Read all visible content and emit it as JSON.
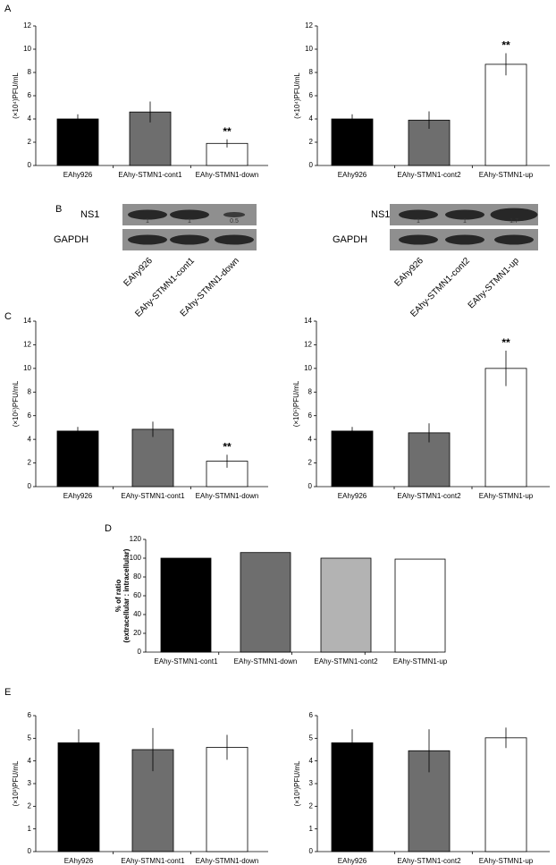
{
  "panels": [
    "A",
    "B",
    "C",
    "D",
    "E"
  ],
  "blots": [
    {
      "rows": [
        "NS1",
        "GAPDH"
      ],
      "lanes": [
        "EAhy926",
        "EAhy-STMN1-cont1",
        "EAhy-STMN1-down"
      ],
      "ns1_ratios": [
        1,
        1,
        0.5
      ]
    },
    {
      "rows": [
        "NS1",
        "GAPDH"
      ],
      "lanes": [
        "EAhy926",
        "EAhy-STMN1-cont2",
        "EAhy-STMN1-up"
      ],
      "ns1_ratios": [
        1,
        1,
        1.7
      ]
    }
  ],
  "chart_data": [
    {
      "type": "bar",
      "ylabel": "(×10⁴)PFU/mL",
      "categories": [
        "EAhy926",
        "EAhy-STMN1-cont1",
        "EAhy-STMN1-down"
      ],
      "values": [
        4.0,
        4.6,
        1.9
      ],
      "errors": [
        0.4,
        0.9,
        0.35
      ],
      "value_annotations": [
        null,
        null,
        "**"
      ],
      "colors": [
        "#000000",
        "#6e6e6e",
        "#ffffff"
      ],
      "ylim": [
        0,
        12
      ],
      "yticks": [
        0,
        2,
        4,
        6,
        8,
        10,
        12
      ]
    },
    {
      "type": "bar",
      "ylabel": "(×10⁴)PFU/mL",
      "categories": [
        "EAhy926",
        "EAhy-STMN1-cont2",
        "EAhy-STMN1-up"
      ],
      "values": [
        4.0,
        3.9,
        8.7
      ],
      "errors": [
        0.4,
        0.75,
        0.95
      ],
      "value_annotations": [
        null,
        null,
        "**"
      ],
      "colors": [
        "#000000",
        "#6e6e6e",
        "#ffffff"
      ],
      "ylim": [
        0,
        12
      ],
      "yticks": [
        0,
        2,
        4,
        6,
        8,
        10,
        12
      ]
    },
    {
      "type": "bar",
      "ylabel": "(×10⁵)PFU/mL",
      "categories": [
        "EAhy926",
        "EAhy-STMN1-cont1",
        "EAhy-STMN1-down"
      ],
      "values": [
        4.7,
        4.85,
        2.15
      ],
      "errors": [
        0.35,
        0.65,
        0.55
      ],
      "value_annotations": [
        null,
        null,
        "**"
      ],
      "colors": [
        "#000000",
        "#6e6e6e",
        "#ffffff"
      ],
      "ylim": [
        0,
        14
      ],
      "yticks": [
        0,
        2,
        4,
        6,
        8,
        10,
        12,
        14
      ]
    },
    {
      "type": "bar",
      "ylabel": "(×10⁵)PFU/mL",
      "categories": [
        "EAhy926",
        "EAhy-STMN1-cont2",
        "EAhy-STMN1-up"
      ],
      "values": [
        4.7,
        4.55,
        10.0
      ],
      "errors": [
        0.35,
        0.8,
        1.5
      ],
      "value_annotations": [
        null,
        null,
        "**"
      ],
      "colors": [
        "#000000",
        "#6e6e6e",
        "#ffffff"
      ],
      "ylim": [
        0,
        14
      ],
      "yticks": [
        0,
        2,
        4,
        6,
        8,
        10,
        12,
        14
      ]
    },
    {
      "type": "bar",
      "ylabel": [
        "% of ratio",
        "(extracellular : intracellular)"
      ],
      "categories": [
        "EAhy-STMN1-cont1",
        "EAhy-STMN1-down",
        "EAhy-STMN1-cont2",
        "EAhy-STMN1-up"
      ],
      "values": [
        100,
        106,
        100,
        99
      ],
      "colors": [
        "#000000",
        "#6e6e6e",
        "#b3b3b3",
        "#ffffff"
      ],
      "ylim": [
        0,
        120
      ],
      "yticks": [
        0,
        20,
        40,
        60,
        80,
        100,
        120
      ]
    },
    {
      "type": "bar",
      "ylabel": "(×10³)PFU/mL",
      "categories": [
        "EAhy926",
        "EAhy-STMN1-cont1",
        "EAhy-STMN1-down"
      ],
      "values": [
        4.8,
        4.5,
        4.6
      ],
      "errors": [
        0.6,
        0.95,
        0.55
      ],
      "colors": [
        "#000000",
        "#6e6e6e",
        "#ffffff"
      ],
      "ylim": [
        0,
        6
      ],
      "yticks": [
        0,
        1,
        2,
        3,
        4,
        5,
        6
      ]
    },
    {
      "type": "bar",
      "ylabel": "(×10³)PFU/mL",
      "categories": [
        "EAhy926",
        "EAhy-STMN1-cont2",
        "EAhy-STMN1-up"
      ],
      "values": [
        4.8,
        4.45,
        5.02
      ],
      "errors": [
        0.6,
        0.95,
        0.45
      ],
      "colors": [
        "#000000",
        "#6e6e6e",
        "#ffffff"
      ],
      "ylim": [
        0,
        6
      ],
      "yticks": [
        0,
        1,
        2,
        3,
        4,
        5,
        6
      ]
    }
  ]
}
